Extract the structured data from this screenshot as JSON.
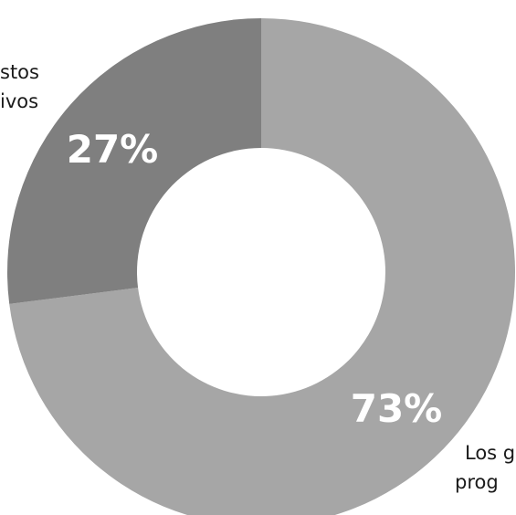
{
  "chart_data": {
    "type": "pie",
    "title": "",
    "slices": [
      {
        "label_lines": [
          "Los g",
          "prog"
        ],
        "value": 73,
        "value_label": "73%",
        "color": "#a6a6a6"
      },
      {
        "label_lines": [
          "stos",
          "ivos"
        ],
        "value": 27,
        "value_label": "27%",
        "color": "#7f7f7f"
      }
    ],
    "donut": true,
    "start_angle_deg": 0,
    "direction": "clockwise",
    "legend": "none"
  }
}
